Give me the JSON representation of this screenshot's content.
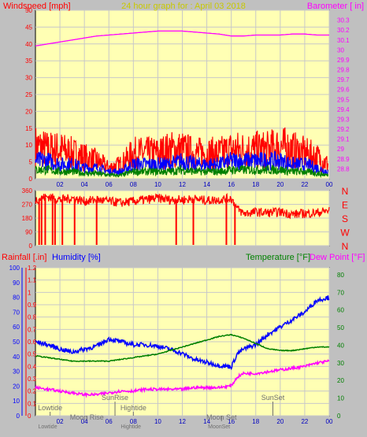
{
  "colors": {
    "background": "#c0c0c0",
    "plot": "#ffffb4",
    "grid": "#c8c8c8",
    "windspeed": "#ff0000",
    "windavg": "#0000ff",
    "windmin": "#008000",
    "barometer": "#ff00ff",
    "direction": "#ff0000",
    "humidity": "#0000ff",
    "temperature": "#008000",
    "dewpoint": "#ff00ff",
    "title": "#c8c800",
    "astro": "#707070"
  },
  "chart_data": [
    {
      "id": "wind-baro",
      "type": "line",
      "title": "24 hour graph for : April 03 2018",
      "ylabel_left": "Windspeed [mph]",
      "ylabel_right": "Barometer [ in]",
      "x_ticks": [
        "02",
        "04",
        "06",
        "08",
        "10",
        "12",
        "14",
        "16",
        "18",
        "20",
        "22",
        "00"
      ],
      "x_range": [
        0,
        24
      ],
      "y_left_range": [
        0,
        50
      ],
      "y_left_ticks": [
        "0",
        "5",
        "10",
        "15",
        "20",
        "25",
        "30",
        "35",
        "40",
        "45",
        "50"
      ],
      "y_right_range": [
        28.7,
        30.4
      ],
      "y_right_ticks": [
        "28.8",
        "28.9",
        "29",
        "29.1",
        "29.2",
        "29.3",
        "29.4",
        "29.5",
        "29.6",
        "29.7",
        "29.8",
        "29.9",
        "30",
        "30.1",
        "30.2",
        "30.3"
      ],
      "series": [
        {
          "key": "gust",
          "x": [
            0,
            1,
            2,
            3,
            4,
            5,
            6,
            7,
            8,
            9,
            10,
            11,
            12,
            13,
            14,
            15,
            16,
            17,
            18,
            19,
            20,
            21,
            22,
            23,
            23.9
          ],
          "values": [
            9,
            8,
            8,
            7,
            6,
            5,
            3,
            4,
            7,
            7,
            7,
            8,
            8,
            7,
            7,
            7,
            8,
            8,
            8,
            8,
            9,
            8,
            7,
            6,
            4
          ]
        },
        {
          "key": "avg",
          "x": [
            0,
            1,
            2,
            3,
            4,
            5,
            6,
            7,
            8,
            9,
            10,
            11,
            12,
            13,
            14,
            15,
            16,
            17,
            18,
            19,
            20,
            21,
            22,
            23,
            23.9
          ],
          "values": [
            5,
            5,
            4,
            4,
            3,
            3,
            2,
            2,
            4,
            4,
            4,
            4,
            5,
            4,
            4,
            4,
            5,
            5,
            5,
            5,
            5,
            4,
            4,
            3,
            2
          ]
        },
        {
          "key": "min",
          "x": [
            0,
            1,
            2,
            3,
            4,
            5,
            6,
            7,
            8,
            9,
            10,
            11,
            12,
            13,
            14,
            15,
            16,
            17,
            18,
            19,
            20,
            21,
            22,
            23,
            23.9
          ],
          "values": [
            2.5,
            2.5,
            2,
            2,
            1.5,
            1.5,
            1,
            1,
            2,
            2,
            2,
            2,
            2.5,
            2,
            2,
            2,
            2.5,
            2.5,
            2.5,
            2.5,
            2.5,
            2,
            2,
            1.5,
            1
          ]
        },
        {
          "key": "baro",
          "axis": "right",
          "x": [
            0,
            1,
            2,
            3,
            4,
            5,
            6,
            7,
            8,
            9,
            10,
            11,
            12,
            13,
            14,
            15,
            16,
            17,
            18,
            19,
            20,
            21,
            22,
            23,
            24
          ],
          "values": [
            30.04,
            30.06,
            30.08,
            30.1,
            30.12,
            30.14,
            30.15,
            30.16,
            30.17,
            30.18,
            30.19,
            30.19,
            30.19,
            30.18,
            30.17,
            30.16,
            30.14,
            30.14,
            30.15,
            30.15,
            30.15,
            30.16,
            30.16,
            30.15,
            30.15
          ]
        }
      ]
    },
    {
      "id": "direction",
      "type": "line",
      "x_range": [
        0,
        24
      ],
      "y_range": [
        0,
        360
      ],
      "y_ticks": [
        "0",
        "90",
        "180",
        "270",
        "360"
      ],
      "right_labels": [
        "N",
        "W",
        "S",
        "E",
        "N"
      ],
      "series": [
        {
          "key": "dir",
          "x": [
            0,
            1,
            2,
            3,
            4,
            5,
            6,
            7,
            8,
            9,
            10,
            11,
            12,
            13,
            14,
            15,
            16,
            16.5,
            17,
            18,
            19,
            20,
            21,
            22,
            23,
            24
          ],
          "values": [
            300,
            320,
            300,
            310,
            290,
            300,
            290,
            280,
            290,
            300,
            310,
            300,
            300,
            305,
            295,
            300,
            310,
            240,
            210,
            220,
            215,
            220,
            205,
            210,
            215,
            230
          ]
        }
      ],
      "drops": [
        0.3,
        0.5,
        0.8,
        1.4,
        1.6,
        2.2,
        3.2,
        5.0,
        11.5,
        12.9,
        15.6,
        16.3
      ]
    },
    {
      "id": "rain-hum-temp",
      "type": "line",
      "ylabel_left1": "Rainfall [.in]",
      "ylabel_left2": "Humidity [%]",
      "ylabel_right1": "Temperature [°F]",
      "ylabel_right2": "Dew Point [°F]",
      "x_ticks": [
        "02",
        "04",
        "06",
        "08",
        "10",
        "12",
        "14",
        "16",
        "18",
        "20",
        "22",
        "00"
      ],
      "x_range": [
        0,
        24
      ],
      "rain_ticks": [
        "0",
        "0.1",
        "0.2",
        "0.3",
        "0.4",
        "0.5",
        "0.6",
        "0.7",
        "0.8",
        "0.9",
        "1",
        "1.1",
        "1.2"
      ],
      "rain_range": [
        0,
        1.2
      ],
      "humidity_ticks": [
        "0",
        "10",
        "20",
        "30",
        "40",
        "50",
        "60",
        "70",
        "80",
        "90",
        "100"
      ],
      "humidity_range": [
        0,
        100
      ],
      "temp_ticks": [
        "0",
        "10",
        "20",
        "30",
        "40",
        "50",
        "60",
        "70",
        "80"
      ],
      "temp_range": [
        0,
        84
      ],
      "series": [
        {
          "key": "humidity",
          "axis": "humidity",
          "x": [
            0,
            1,
            2,
            3,
            4,
            5,
            6,
            7,
            8,
            9,
            10,
            11,
            12,
            13,
            14,
            15,
            16,
            16.5,
            17,
            18,
            19,
            20,
            21,
            22,
            23,
            24
          ],
          "values": [
            50,
            48,
            45,
            43,
            45,
            47,
            52,
            50,
            48,
            48,
            47,
            45,
            42,
            38,
            36,
            34,
            33,
            42,
            45,
            48,
            55,
            60,
            65,
            70,
            78,
            80
          ]
        },
        {
          "key": "temperature",
          "axis": "temp",
          "x": [
            0,
            1,
            2,
            3,
            4,
            5,
            6,
            7,
            8,
            9,
            10,
            11,
            12,
            13,
            14,
            15,
            16,
            17,
            18,
            19,
            20,
            21,
            22,
            23,
            24
          ],
          "values": [
            34,
            33,
            32,
            31,
            31,
            31,
            31,
            32,
            33,
            34,
            35,
            37,
            39,
            41,
            43,
            45,
            46,
            44,
            41,
            38,
            37,
            37,
            38,
            39,
            39
          ]
        },
        {
          "key": "dewpoint",
          "axis": "temp",
          "x": [
            0,
            1,
            2,
            3,
            4,
            5,
            6,
            7,
            8,
            9,
            10,
            11,
            12,
            13,
            14,
            15,
            16,
            16.5,
            17,
            18,
            19,
            20,
            21,
            22,
            23,
            24
          ],
          "values": [
            16,
            15,
            14,
            13,
            12,
            12,
            13,
            14,
            14,
            15,
            15,
            15,
            15,
            16,
            16,
            16,
            17,
            22,
            24,
            24,
            25,
            26,
            27,
            28,
            30,
            31
          ]
        }
      ],
      "astro_labels": [
        {
          "text": "Lowtide",
          "x": 1.2,
          "row": 1
        },
        {
          "text": "Moon Rise",
          "x": 4.2,
          "row": 2
        },
        {
          "text": "SunRise",
          "x": 6.5,
          "row": 0
        },
        {
          "text": "Hightide",
          "x": 8.0,
          "row": 1
        },
        {
          "text": "Moon Set",
          "x": 15.2,
          "row": 2
        },
        {
          "text": "SunSet",
          "x": 19.4,
          "row": 0
        }
      ],
      "bottom_labels": [
        {
          "text": "Lowtide",
          "x": 1.0
        },
        {
          "text": "Hightide",
          "x": 7.8
        },
        {
          "text": "MoonSet",
          "x": 15.0
        }
      ]
    }
  ]
}
